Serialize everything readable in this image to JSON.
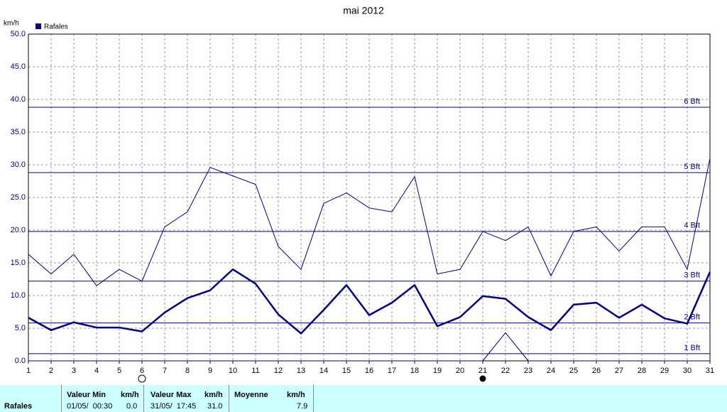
{
  "chart_data": {
    "type": "line",
    "title": "mai 2012",
    "y_unit": "km/h",
    "legend": "Rafales",
    "legend_position": "top-left",
    "x": [
      1,
      2,
      3,
      4,
      5,
      6,
      7,
      8,
      9,
      10,
      11,
      12,
      13,
      14,
      15,
      16,
      17,
      18,
      19,
      20,
      21,
      22,
      23,
      24,
      25,
      26,
      27,
      28,
      29,
      30,
      31
    ],
    "xlim": [
      1,
      31
    ],
    "xticks": [
      1,
      2,
      3,
      4,
      5,
      6,
      7,
      8,
      9,
      10,
      11,
      12,
      13,
      14,
      15,
      16,
      17,
      18,
      19,
      20,
      21,
      22,
      23,
      24,
      25,
      26,
      27,
      28,
      29,
      30,
      31
    ],
    "ylim": [
      0,
      50
    ],
    "yticks": [
      {
        "value": 0,
        "label": "0.0"
      },
      {
        "value": 5,
        "label": "5.0"
      },
      {
        "value": 10,
        "label": "10.0"
      },
      {
        "value": 15,
        "label": "15.0"
      },
      {
        "value": 20,
        "label": "20.0"
      },
      {
        "value": 25,
        "label": "25.0"
      },
      {
        "value": 30,
        "label": "30.0"
      },
      {
        "value": 35,
        "label": "35.0"
      },
      {
        "value": 40,
        "label": "40.0"
      },
      {
        "value": 45,
        "label": "45.0"
      },
      {
        "value": 50,
        "label": "50.0"
      }
    ],
    "grid": true,
    "series": [
      {
        "color": "#000080",
        "width": 1,
        "values": [
          16.3,
          13.3,
          16.3,
          11.5,
          14.0,
          12.2,
          20.5,
          22.8,
          29.6,
          28.3,
          27.0,
          17.5,
          14.0,
          24.1,
          25.7,
          23.4,
          22.8,
          28.2,
          13.3,
          14.0,
          19.8,
          18.4,
          20.5,
          13.0,
          19.8,
          20.5,
          16.8,
          20.5,
          20.5,
          14.0,
          31.0
        ]
      },
      {
        "color": "#000080",
        "width": 2.5,
        "values": [
          6.6,
          4.7,
          5.9,
          5.1,
          5.1,
          4.5,
          7.4,
          9.6,
          10.8,
          14.0,
          11.8,
          7.1,
          4.2,
          7.8,
          11.6,
          7.0,
          8.9,
          11.6,
          5.3,
          6.7,
          9.9,
          9.5,
          6.7,
          4.7,
          8.6,
          8.9,
          6.6,
          8.6,
          6.5,
          5.7,
          13.6
        ]
      },
      {
        "color": "#000080",
        "width": 1,
        "values": [
          0,
          0,
          0,
          0,
          0,
          0,
          0,
          0,
          0,
          0,
          0,
          0,
          0,
          0,
          0,
          0,
          0,
          0,
          0,
          0,
          0,
          4.3,
          0,
          0,
          0,
          0,
          0,
          0,
          0,
          0,
          0
        ]
      }
    ],
    "reference_lines": [
      {
        "value": 1.1,
        "label": "1 Bft"
      },
      {
        "value": 5.8,
        "label": "2 Bft"
      },
      {
        "value": 12.2,
        "label": "3 Bft"
      },
      {
        "value": 19.8,
        "label": "4 Bft"
      },
      {
        "value": 28.8,
        "label": "5 Bft"
      },
      {
        "value": 38.8,
        "label": "6 Bft"
      }
    ]
  },
  "summary": {
    "name": "Rafales",
    "headers": [
      "Valeur Min",
      "km/h",
      "Valeur Max",
      "km/h",
      "Moyenne",
      "km/h"
    ],
    "values": [
      "01/05/  00:30",
      "0.0",
      "31/05/  17:45",
      "31.0",
      "",
      "7.9"
    ]
  }
}
